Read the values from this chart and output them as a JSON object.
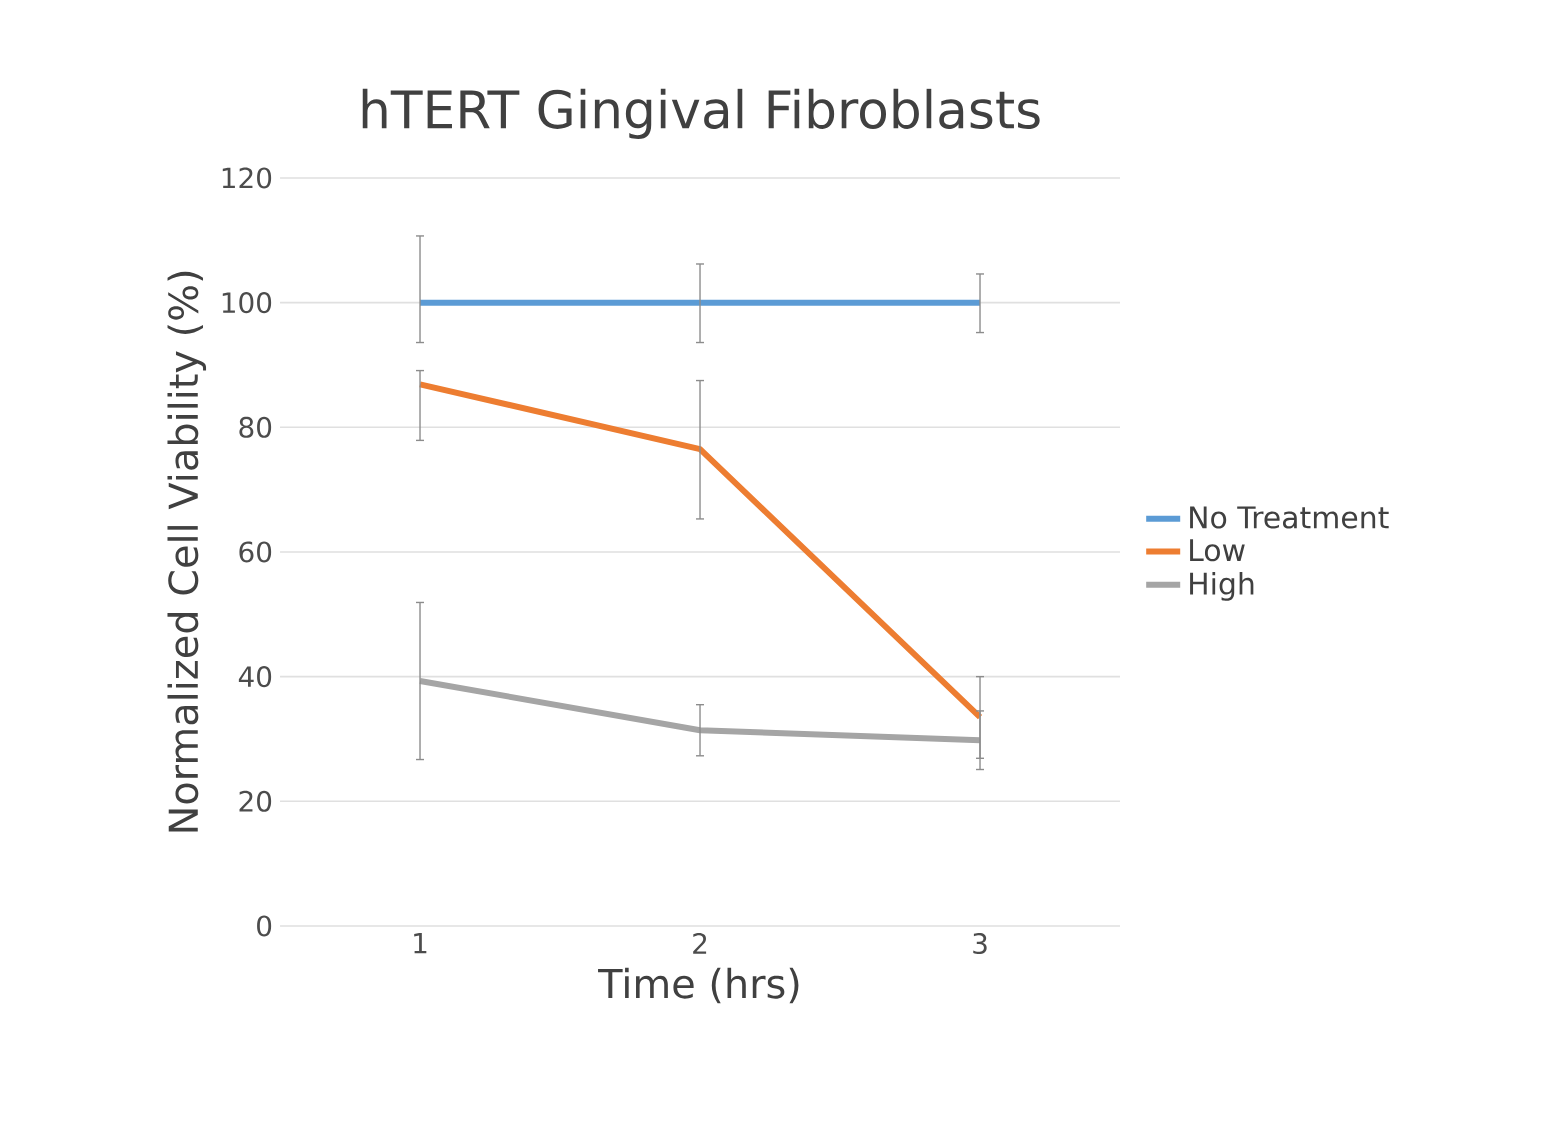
{
  "chart_data": {
    "type": "line",
    "title": "hTERT Gingival Fibroblasts",
    "xlabel": "Time (hrs)",
    "ylabel": "Normalized Cell Viability (%)",
    "categories": [
      "1",
      "2",
      "3"
    ],
    "series": [
      {
        "name": "No Treatment",
        "color": "#5b9bd5",
        "values": [
          100,
          100,
          100
        ],
        "errors": [
          [
            93.6,
            110.7
          ],
          [
            93.6,
            106.2
          ],
          [
            95.2,
            104.6
          ]
        ]
      },
      {
        "name": "Low",
        "color": "#ed7d31",
        "values": [
          86.9,
          76.5,
          33.5
        ],
        "errors": [
          [
            77.9,
            89.1
          ],
          [
            65.3,
            87.5
          ],
          [
            26.9,
            40
          ]
        ]
      },
      {
        "name": "High",
        "color": "#a5a5a5",
        "values": [
          39.3,
          31.4,
          29.8
        ],
        "errors": [
          [
            26.7,
            51.9
          ],
          [
            27.3,
            35.5
          ],
          [
            25.1,
            34.5
          ]
        ]
      }
    ],
    "ylim": [
      0,
      120
    ],
    "yticks": [
      0,
      20,
      40,
      60,
      80,
      100,
      120
    ],
    "grid": "y",
    "legend": "right",
    "marker": "none",
    "line_style": "solid"
  }
}
